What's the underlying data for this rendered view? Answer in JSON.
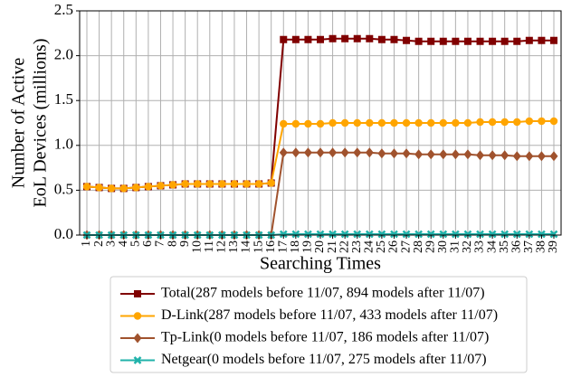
{
  "chart_data": {
    "type": "line",
    "ylabel": [
      "Number of Active",
      "EoL Devices (millions)"
    ],
    "xlabel": "Searching Times",
    "categories": [
      "1",
      "2",
      "3",
      "4",
      "5",
      "6",
      "7",
      "8",
      "9",
      "10",
      "11",
      "12",
      "13",
      "14",
      "15",
      "16",
      "17",
      "18",
      "19",
      "20",
      "21",
      "22",
      "23",
      "24",
      "25",
      "26",
      "27",
      "28",
      "29",
      "30",
      "31",
      "32",
      "33",
      "34",
      "35",
      "36",
      "37",
      "38",
      "39"
    ],
    "ylim": [
      0,
      2.5
    ],
    "yticks": [
      {
        "value": 0,
        "label": "0.0"
      },
      {
        "value": 0.5,
        "label": "0.5"
      },
      {
        "value": 1,
        "label": "1.0"
      },
      {
        "value": 1.5,
        "label": "1.5"
      },
      {
        "value": 2,
        "label": "2.0"
      },
      {
        "value": 2.5,
        "label": "2.5"
      }
    ],
    "grid": true,
    "series": [
      {
        "name": "Total(287 models before 11/07, 894 models after 11/07)",
        "color": "#800000",
        "marker": "square",
        "values": [
          0.54,
          0.53,
          0.52,
          0.52,
          0.53,
          0.54,
          0.55,
          0.56,
          0.57,
          0.57,
          0.57,
          0.57,
          0.57,
          0.57,
          0.57,
          0.58,
          2.18,
          2.18,
          2.18,
          2.18,
          2.19,
          2.19,
          2.19,
          2.19,
          2.18,
          2.18,
          2.17,
          2.16,
          2.16,
          2.16,
          2.16,
          2.16,
          2.16,
          2.16,
          2.16,
          2.16,
          2.17,
          2.17,
          2.17
        ]
      },
      {
        "name": "D-Link(287 models before 11/07, 433 models after 11/07)",
        "color": "#ffa500",
        "marker": "circle",
        "values": [
          0.54,
          0.53,
          0.52,
          0.52,
          0.53,
          0.54,
          0.55,
          0.56,
          0.57,
          0.57,
          0.57,
          0.57,
          0.57,
          0.57,
          0.57,
          0.58,
          1.24,
          1.24,
          1.24,
          1.24,
          1.25,
          1.25,
          1.25,
          1.25,
          1.25,
          1.25,
          1.25,
          1.25,
          1.25,
          1.25,
          1.25,
          1.25,
          1.26,
          1.26,
          1.26,
          1.26,
          1.27,
          1.27,
          1.27
        ]
      },
      {
        "name": "Tp-Link(0 models before 11/07, 186 models after 11/07)",
        "color": "#a0522d",
        "marker": "diamond",
        "values": [
          0,
          0,
          0,
          0,
          0,
          0,
          0,
          0,
          0,
          0,
          0,
          0,
          0,
          0,
          0,
          0,
          0.92,
          0.92,
          0.92,
          0.92,
          0.92,
          0.92,
          0.92,
          0.92,
          0.91,
          0.91,
          0.91,
          0.9,
          0.9,
          0.9,
          0.9,
          0.9,
          0.89,
          0.89,
          0.89,
          0.88,
          0.88,
          0.88,
          0.88
        ]
      },
      {
        "name": "Netgear(0 models before 11/07, 275 models after 11/07)",
        "color": "#20b2aa",
        "marker": "x",
        "values": [
          0,
          0,
          0,
          0,
          0,
          0,
          0,
          0,
          0,
          0,
          0,
          0,
          0,
          0,
          0,
          0,
          0.01,
          0.01,
          0.01,
          0.01,
          0.01,
          0.01,
          0.01,
          0.01,
          0.01,
          0.01,
          0.01,
          0.01,
          0.01,
          0.01,
          0.01,
          0.01,
          0.01,
          0.01,
          0.01,
          0.01,
          0.01,
          0.01,
          0.01
        ]
      }
    ]
  }
}
